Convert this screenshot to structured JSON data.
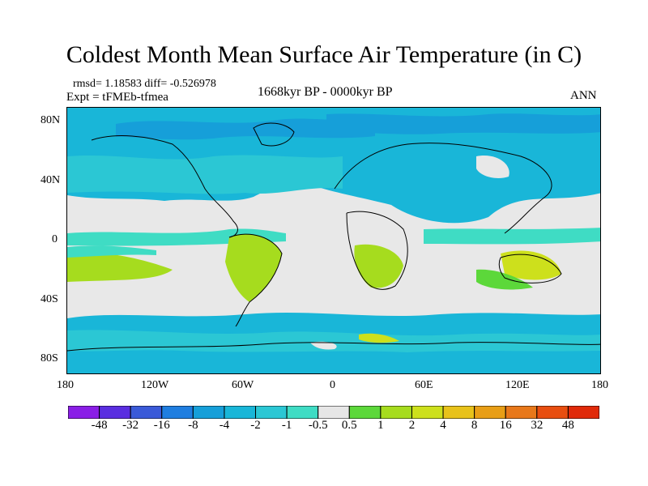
{
  "title": "Coldest Month Mean Surface Air Temperature (in C)",
  "stats": "rmsd= 1.18583 diff= -0.526978",
  "experiment": "Expt = tFMEb-tfmea",
  "period": "1668kyr BP - 0000kyr BP",
  "season": "ANN",
  "map": {
    "y_labels": [
      "80N",
      "40N",
      "0",
      "40S",
      "80S"
    ],
    "x_labels": [
      "180",
      "120W",
      "60W",
      "0",
      "60E",
      "120E",
      "180"
    ]
  },
  "colorbar": {
    "colors": [
      "#8a1ee6",
      "#5a2ee0",
      "#3a5ad8",
      "#1f7ee0",
      "#169fd9",
      "#19b6d8",
      "#2bc7d4",
      "#3fdcc4",
      "#e6e6e6",
      "#5cd83a",
      "#a6dc1e",
      "#cde01c",
      "#e8c21a",
      "#e89e16",
      "#e8781a",
      "#e84e10",
      "#e02a0a"
    ],
    "labels": [
      "-48",
      "-32",
      "-16",
      "-8",
      "-4",
      "-2",
      "-1",
      "-0.5",
      "0.5",
      "1",
      "2",
      "4",
      "8",
      "16",
      "32",
      "48"
    ]
  },
  "field_colors": {
    "neutral": "#e8e8e8",
    "cool_light": "#3fdcc4",
    "cool": "#2bc7d4",
    "cool_mid": "#19b6d8",
    "cool_deep": "#169fd9",
    "warm": "#5cd83a",
    "warm_more": "#a6dc1e",
    "warm_hot": "#cde01c"
  }
}
